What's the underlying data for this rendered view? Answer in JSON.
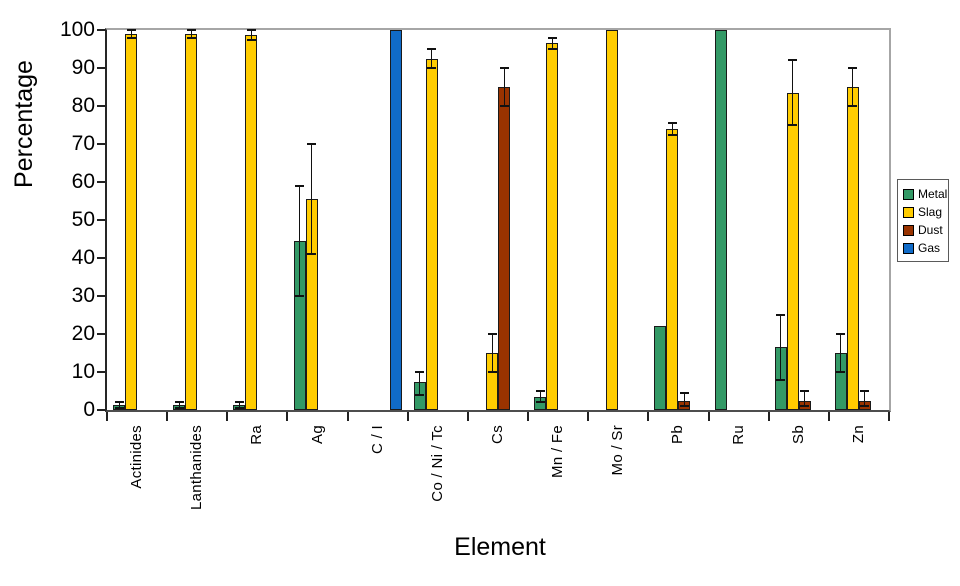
{
  "chart_data": {
    "type": "bar",
    "title": "",
    "xlabel": "Element",
    "ylabel": "Percentage",
    "ylim": [
      0,
      100
    ],
    "ytick_step": 10,
    "grid": false,
    "legend_position": "right",
    "error_bars_shown": true,
    "categories": [
      "Actinides",
      "Lanthanides",
      "Ra",
      "Ag",
      "C / I",
      "Co / Ni / Tc",
      "Cs",
      "Mn / Fe",
      "Mo / Sr",
      "Pb",
      "Ru",
      "Sb",
      "Zn"
    ],
    "series": [
      {
        "name": "Metal",
        "color": "#339966",
        "values": [
          1.2,
          1.2,
          1.2,
          44.5,
          0,
          7.5,
          0,
          3.5,
          0,
          22,
          100,
          16.5,
          15
        ],
        "error_bars": [
          [
            0.5,
            2
          ],
          [
            0.5,
            2
          ],
          [
            0.5,
            2
          ],
          [
            30,
            59
          ],
          null,
          [
            4,
            10
          ],
          null,
          [
            2,
            5
          ],
          null,
          null,
          null,
          [
            8,
            25
          ],
          [
            10,
            20
          ]
        ]
      },
      {
        "name": "Slag",
        "color": "#FFCC00",
        "values": [
          99,
          99,
          98.8,
          55.5,
          0,
          92.5,
          15,
          96.5,
          100,
          74,
          0,
          83.5,
          85
        ],
        "error_bars": [
          [
            98,
            100
          ],
          [
            98,
            100
          ],
          [
            97.5,
            100
          ],
          [
            41,
            70
          ],
          null,
          [
            90,
            95
          ],
          [
            10,
            20
          ],
          [
            95,
            98
          ],
          null,
          [
            72.5,
            75.5
          ],
          null,
          [
            75,
            92
          ],
          [
            80,
            90
          ]
        ]
      },
      {
        "name": "Dust",
        "color": "#993300",
        "values": [
          0,
          0,
          0,
          0,
          0,
          0,
          85,
          0,
          0,
          2.5,
          0,
          2.5,
          2.5
        ],
        "error_bars": [
          null,
          null,
          null,
          null,
          null,
          null,
          [
            80,
            90
          ],
          null,
          null,
          [
            1,
            4.5
          ],
          null,
          [
            1,
            5
          ],
          [
            1,
            5
          ]
        ]
      },
      {
        "name": "Gas",
        "color": "#106BC8",
        "values": [
          0,
          0,
          0,
          0,
          100,
          0,
          0,
          0,
          0,
          0,
          0,
          0,
          0
        ],
        "error_bars": [
          null,
          null,
          null,
          null,
          null,
          null,
          null,
          null,
          null,
          null,
          null,
          null,
          null
        ]
      }
    ]
  }
}
